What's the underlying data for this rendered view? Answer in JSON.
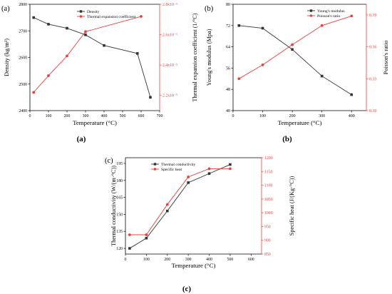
{
  "colors": {
    "series_black": "#333333",
    "series_red": "#e8413a",
    "axis_left": "#000000",
    "axis_right_red": "#e8413a"
  },
  "chart_data": [
    {
      "panel": "a",
      "panel_label": "(a)",
      "caption": "(a)",
      "type": "line",
      "xlabel": "Temperature (°C)",
      "ylabel": "Density (kg/m³)",
      "y2label": "Thermal expansion coefficient (1/°C)",
      "xlim": [
        0,
        700
      ],
      "ylim": [
        2400,
        2800
      ],
      "y2lim": [
        2.1e-05,
        2.8e-05
      ],
      "xticks": [
        "0",
        "100",
        "200",
        "300",
        "400",
        "500",
        "600",
        "700"
      ],
      "yticks": [
        "2400",
        "2500",
        "2600",
        "2700",
        "2800"
      ],
      "y2ticks": [
        "2.2x10⁻⁵",
        "2.4x10⁻⁵",
        "2.6x10⁻⁵",
        "2.8x10⁻⁵"
      ],
      "legend_position": "top-right",
      "grid": false,
      "series": [
        {
          "name": "Density",
          "axis": "left",
          "color": "#333333",
          "marker": "square",
          "x": [
            20,
            100,
            200,
            300,
            400,
            580,
            650
          ],
          "values": [
            2750,
            2725,
            2710,
            2685,
            2645,
            2615,
            2450
          ]
        },
        {
          "name": "Thermal expansion coefficient",
          "axis": "right",
          "color": "#e8413a",
          "marker": "circle",
          "x": [
            20,
            100,
            200,
            300,
            600
          ],
          "values": [
            2.22e-05,
            2.33e-05,
            2.46e-05,
            2.62e-05,
            2.72e-05
          ]
        }
      ]
    },
    {
      "panel": "b",
      "panel_label": "(b)",
      "caption": "(b)",
      "type": "line",
      "xlabel": "Temperature (°C)",
      "ylabel": "Young's modulus (Mpa)",
      "y2label": "Poisson's ratio",
      "xlim": [
        0,
        450
      ],
      "ylim": [
        40,
        80
      ],
      "y2lim": [
        0.3,
        0.4
      ],
      "xticks": [
        "0",
        "100",
        "200",
        "300",
        "400"
      ],
      "yticks": [
        "40",
        "48",
        "56",
        "64",
        "72",
        "80"
      ],
      "y2ticks": [
        "0.30",
        "0.33",
        "0.36",
        "0.39"
      ],
      "legend_position": "top-right",
      "grid": false,
      "series": [
        {
          "name": "Young's modulus",
          "axis": "left",
          "color": "#333333",
          "marker": "square",
          "x": [
            20,
            100,
            200,
            300,
            400
          ],
          "values": [
            72,
            71,
            63,
            53,
            46
          ]
        },
        {
          "name": "Poisson's ratio",
          "axis": "right",
          "color": "#e8413a",
          "marker": "circle",
          "x": [
            20,
            100,
            200,
            300,
            400
          ],
          "values": [
            0.33,
            0.343,
            0.362,
            0.38,
            0.389
          ]
        }
      ]
    },
    {
      "panel": "c",
      "panel_label": "(c)",
      "caption": "(c)",
      "type": "line",
      "xlabel": "Temperature (°C)",
      "ylabel": "Thermal conductivity (W/(m·°C))",
      "y2label": "Specific heat (J/(Kg·°C))",
      "xlim": [
        0,
        650
      ],
      "ylim": [
        115,
        200
      ],
      "y2lim": [
        850,
        1200
      ],
      "xticks": [
        "0",
        "100",
        "200",
        "300",
        "400",
        "500",
        "600"
      ],
      "yticks": [
        "120",
        "135",
        "150",
        "165",
        "180",
        "195"
      ],
      "y2ticks": [
        "850",
        "900",
        "950",
        "1000",
        "1050",
        "1100",
        "1150",
        "1200"
      ],
      "legend_position": "top-left",
      "grid": false,
      "series": [
        {
          "name": "Thermal conductivity",
          "axis": "left",
          "color": "#333333",
          "marker": "square",
          "x": [
            20,
            100,
            200,
            300,
            400,
            500
          ],
          "values": [
            120,
            129,
            153,
            178,
            186,
            194
          ]
        },
        {
          "name": "Specific heat",
          "axis": "right",
          "color": "#e8413a",
          "marker": "circle",
          "x": [
            20,
            100,
            200,
            300,
            400,
            500
          ],
          "values": [
            920,
            920,
            1030,
            1130,
            1160,
            1160
          ]
        }
      ]
    }
  ]
}
